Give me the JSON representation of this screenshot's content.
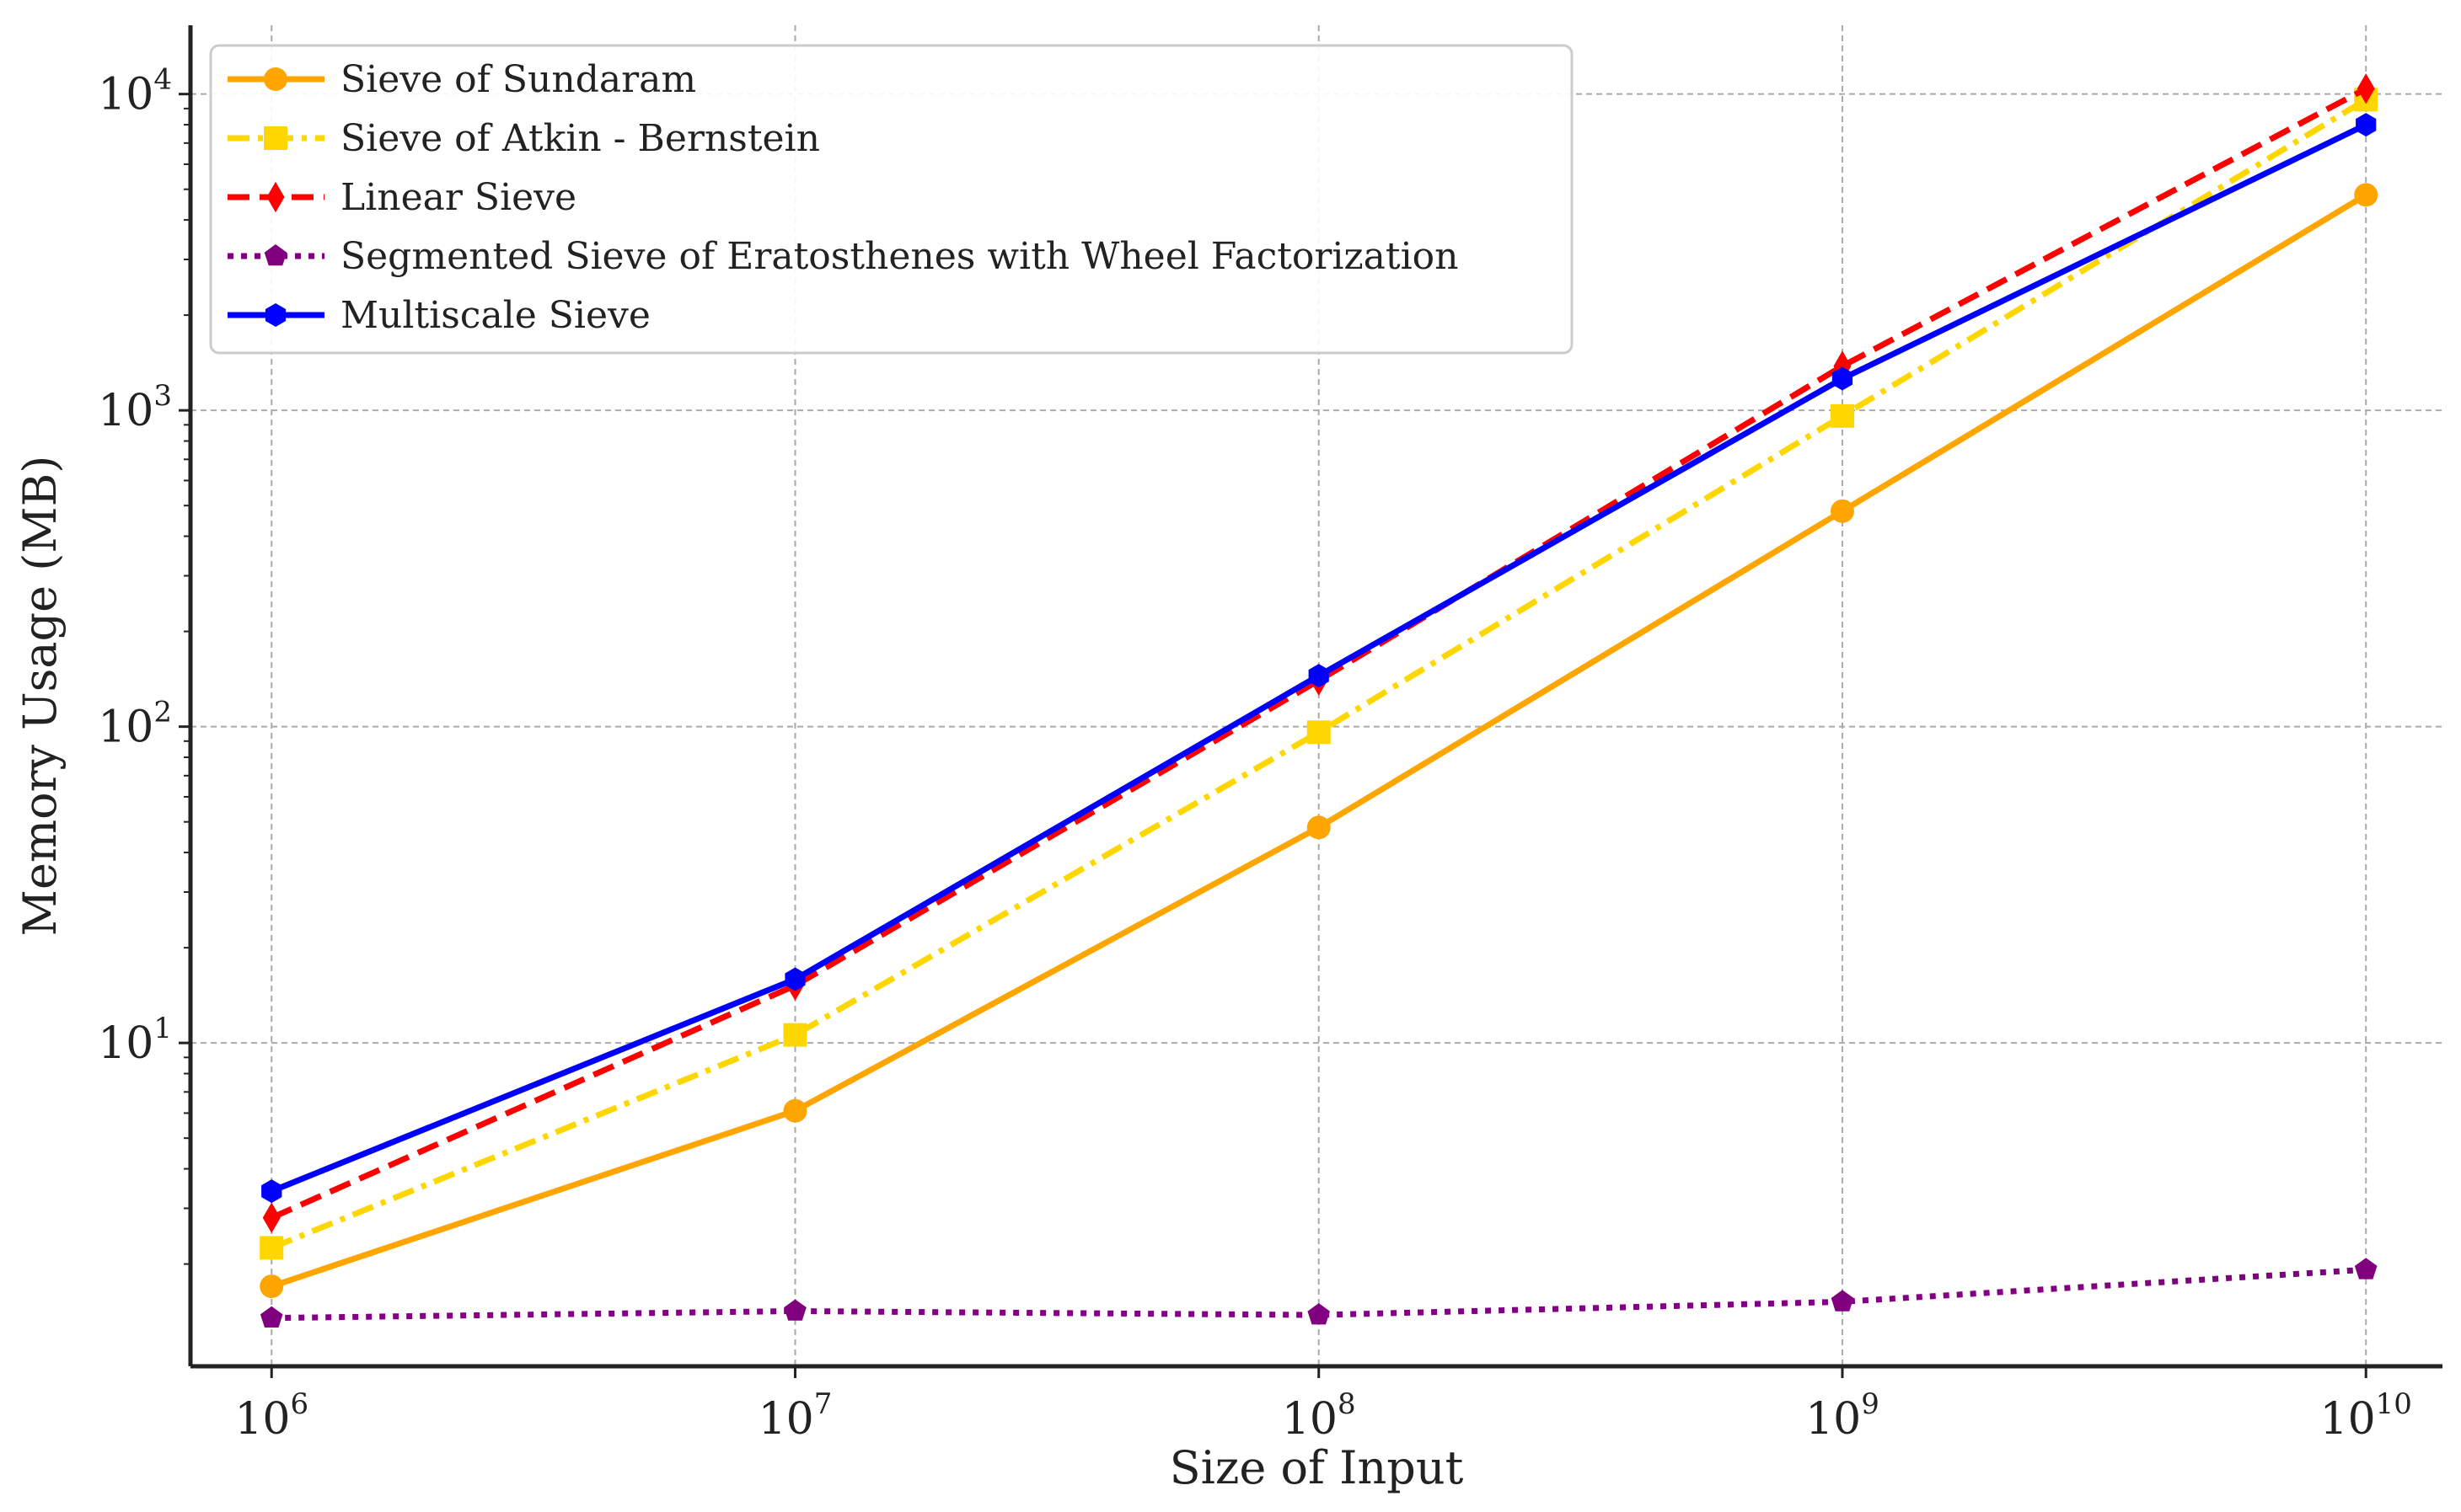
{
  "chart_data": {
    "type": "line",
    "title": "",
    "xlabel": "Size of Input",
    "ylabel": "Memory Usage (MB)",
    "xscale": "log",
    "yscale": "log",
    "x": [
      1000000,
      10000000,
      100000000,
      1000000000,
      10000000000
    ],
    "xlim": [
      700000,
      14000000000
    ],
    "ylim": [
      0.95,
      16500
    ],
    "grid": true,
    "legend_position": "top-left",
    "x_ticks": [
      {
        "value": 1000000,
        "base": "10",
        "exp": "6"
      },
      {
        "value": 10000000,
        "base": "10",
        "exp": "7"
      },
      {
        "value": 100000000,
        "base": "10",
        "exp": "8"
      },
      {
        "value": 1000000000,
        "base": "10",
        "exp": "9"
      },
      {
        "value": 10000000000,
        "base": "10",
        "exp": "10"
      }
    ],
    "y_ticks": [
      {
        "value": 10,
        "base": "10",
        "exp": "1"
      },
      {
        "value": 100,
        "base": "10",
        "exp": "2"
      },
      {
        "value": 1000,
        "base": "10",
        "exp": "3"
      },
      {
        "value": 10000,
        "base": "10",
        "exp": "4"
      }
    ],
    "series": [
      {
        "name": "Sieve of Sundaram",
        "color": "#FFA500",
        "dash": "solid",
        "marker": "circle",
        "values": [
          1.7,
          6.1,
          48,
          480,
          4800
        ]
      },
      {
        "name": "Sieve of Atkin - Bernstein",
        "color": "#FFD700",
        "dash": "dashdot",
        "marker": "square",
        "values": [
          2.25,
          10.6,
          96,
          960,
          9600
        ]
      },
      {
        "name": "Linear Sieve",
        "color": "#FF0000",
        "dash": "dashed",
        "marker": "diamond",
        "values": [
          2.8,
          15.2,
          140,
          1380,
          10400
        ]
      },
      {
        "name": "Segmented Sieve of Eratosthenes with Wheel Factorization",
        "color": "#800080",
        "dash": "dotted",
        "marker": "pentagon",
        "values": [
          1.35,
          1.42,
          1.38,
          1.52,
          1.92
        ]
      },
      {
        "name": "Multiscale Sieve",
        "color": "#0000FF",
        "dash": "solid",
        "marker": "hexagon",
        "values": [
          3.4,
          15.9,
          145,
          1260,
          8000
        ]
      }
    ]
  }
}
